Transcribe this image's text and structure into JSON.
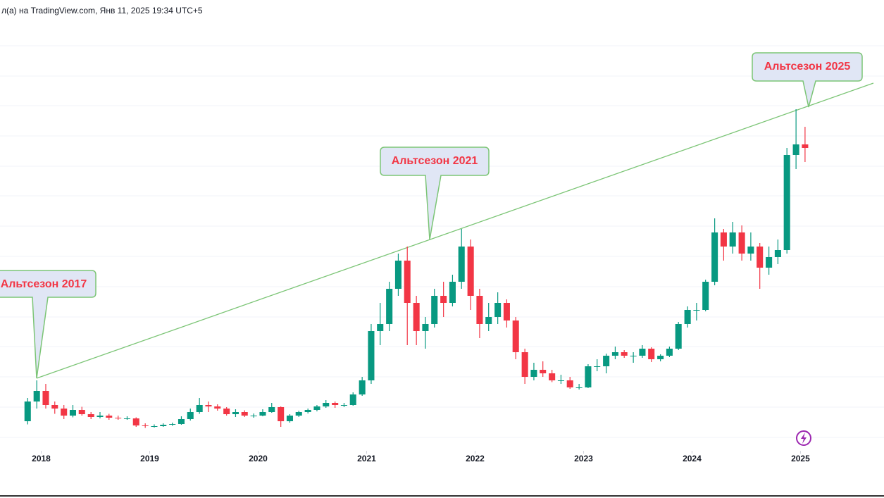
{
  "chart_data": {
    "type": "candlestick",
    "title": "л(а) на TradingView.com, Янв 11, 2025 19:34 UTC+5",
    "annotations": [
      "Альтсезон 2017",
      "Альтсезон 2021",
      "Альтсезон 2025"
    ],
    "up_color": "#089981",
    "down_color": "#f23645",
    "trendline_color": "#7cc576",
    "xlim": [
      2017.62,
      2025.77
    ],
    "ylim": [
      0,
      122
    ],
    "xticks": [
      2018,
      2019,
      2020,
      2021,
      2022,
      2023,
      2024,
      2025
    ],
    "x": [
      2017.833,
      2017.917,
      2018.0,
      2018.083,
      2018.167,
      2018.25,
      2018.333,
      2018.417,
      2018.5,
      2018.583,
      2018.667,
      2018.75,
      2018.833,
      2018.917,
      2019.0,
      2019.083,
      2019.167,
      2019.25,
      2019.333,
      2019.417,
      2019.5,
      2019.583,
      2019.667,
      2019.75,
      2019.833,
      2019.917,
      2020.0,
      2020.083,
      2020.167,
      2020.25,
      2020.333,
      2020.417,
      2020.5,
      2020.583,
      2020.667,
      2020.75,
      2020.833,
      2020.917,
      2021.0,
      2021.083,
      2021.167,
      2021.25,
      2021.333,
      2021.417,
      2021.5,
      2021.583,
      2021.667,
      2021.75,
      2021.833,
      2021.917,
      2022.0,
      2022.083,
      2022.167,
      2022.25,
      2022.333,
      2022.417,
      2022.5,
      2022.583,
      2022.667,
      2022.75,
      2022.833,
      2022.917,
      2023.0,
      2023.083,
      2023.167,
      2023.25,
      2023.333,
      2023.417,
      2023.5,
      2023.583,
      2023.667,
      2023.75,
      2023.833,
      2023.917,
      2024.0,
      2024.083,
      2024.167,
      2024.25,
      2024.333,
      2024.417,
      2024.5,
      2024.583,
      2024.667,
      2024.75,
      2024.833,
      2024.917,
      2025.0
    ],
    "candles": [
      [
        8.4,
        15,
        7.5,
        14
      ],
      [
        14,
        20,
        12,
        17
      ],
      [
        17,
        19,
        12,
        13
      ],
      [
        13,
        14,
        10.5,
        12
      ],
      [
        12,
        13,
        9,
        10
      ],
      [
        10,
        13,
        9.5,
        11.6
      ],
      [
        11.6,
        12.5,
        10,
        10.4
      ],
      [
        10.4,
        11,
        9,
        9.6
      ],
      [
        9.6,
        11,
        9.2,
        10
      ],
      [
        10,
        10.5,
        8.8,
        9.4
      ],
      [
        9.4,
        10,
        8.8,
        9.2
      ],
      [
        9.2,
        9.8,
        8.8,
        9.2
      ],
      [
        9.2,
        9.5,
        6.8,
        7.2
      ],
      [
        7.2,
        7.8,
        6.5,
        7
      ],
      [
        7,
        7.5,
        6.6,
        7
      ],
      [
        7,
        7.8,
        6.8,
        7.4
      ],
      [
        7.4,
        8,
        7.1,
        7.6
      ],
      [
        7.6,
        9.8,
        7.4,
        9
      ],
      [
        9,
        12,
        8.6,
        11
      ],
      [
        11,
        15,
        10.5,
        13
      ],
      [
        13,
        14,
        11,
        12.6
      ],
      [
        12.6,
        13.2,
        11.4,
        12
      ],
      [
        12,
        12.4,
        10,
        10.4
      ],
      [
        10.4,
        11.8,
        9.6,
        11
      ],
      [
        11,
        11.5,
        9.6,
        10
      ],
      [
        10,
        10.6,
        9.4,
        10
      ],
      [
        10,
        11.8,
        9.8,
        11
      ],
      [
        11,
        13.6,
        10.8,
        12.4
      ],
      [
        12.4,
        12.6,
        6.8,
        8.4
      ],
      [
        8.4,
        10.4,
        8,
        10
      ],
      [
        10,
        11.4,
        9.6,
        11
      ],
      [
        11,
        12,
        10.6,
        11.6
      ],
      [
        11.6,
        13,
        11.2,
        12.6
      ],
      [
        12.6,
        14.4,
        12.2,
        13.6
      ],
      [
        13.6,
        14,
        12.2,
        13
      ],
      [
        13,
        13.6,
        12.4,
        13
      ],
      [
        13,
        16.6,
        12.8,
        16
      ],
      [
        16,
        21,
        15.6,
        20
      ],
      [
        20,
        36,
        19,
        34
      ],
      [
        34,
        42,
        30,
        36
      ],
      [
        36,
        48,
        34,
        46
      ],
      [
        46,
        56,
        44,
        54
      ],
      [
        54,
        58,
        30,
        42
      ],
      [
        42,
        44,
        30,
        34
      ],
      [
        34,
        38,
        29,
        36
      ],
      [
        36,
        46,
        35,
        44
      ],
      [
        44,
        48,
        38,
        42
      ],
      [
        42,
        50,
        41,
        48
      ],
      [
        48,
        63,
        46,
        58
      ],
      [
        58,
        60,
        40,
        44
      ],
      [
        44,
        46,
        32,
        36
      ],
      [
        36,
        42,
        34,
        38
      ],
      [
        38,
        45,
        36,
        42
      ],
      [
        42,
        43,
        35,
        37
      ],
      [
        37,
        38,
        26,
        28
      ],
      [
        28,
        29,
        19,
        21
      ],
      [
        21,
        25,
        20,
        23
      ],
      [
        23,
        25.4,
        21,
        22
      ],
      [
        22,
        23,
        19.5,
        20
      ],
      [
        20,
        21.6,
        19,
        20
      ],
      [
        20,
        21,
        17.6,
        18
      ],
      [
        18,
        19,
        17.4,
        18
      ],
      [
        18,
        24.6,
        17.8,
        24
      ],
      [
        24,
        26,
        22.6,
        24
      ],
      [
        24,
        27.6,
        22,
        27
      ],
      [
        27,
        29.6,
        26,
        28
      ],
      [
        28,
        28.6,
        26.4,
        27
      ],
      [
        27,
        28,
        25,
        27
      ],
      [
        27,
        30,
        26.4,
        29
      ],
      [
        29,
        29.4,
        25.2,
        26
      ],
      [
        26,
        27.4,
        25.4,
        27
      ],
      [
        27,
        29.6,
        26.6,
        29
      ],
      [
        29,
        36.6,
        28.6,
        36
      ],
      [
        36,
        41,
        35,
        40
      ],
      [
        40,
        42,
        37,
        40
      ],
      [
        40,
        48.6,
        39.6,
        48
      ],
      [
        48,
        66,
        47,
        62
      ],
      [
        62,
        63,
        54,
        58
      ],
      [
        58,
        65,
        56,
        62
      ],
      [
        62,
        64,
        54,
        56
      ],
      [
        56,
        62,
        54,
        58
      ],
      [
        58,
        59,
        46,
        52
      ],
      [
        52,
        58,
        50,
        55
      ],
      [
        55,
        60,
        53,
        57
      ],
      [
        57,
        86,
        56,
        84
      ],
      [
        84,
        97,
        80,
        87
      ],
      [
        87,
        92,
        82,
        86
      ]
    ]
  }
}
